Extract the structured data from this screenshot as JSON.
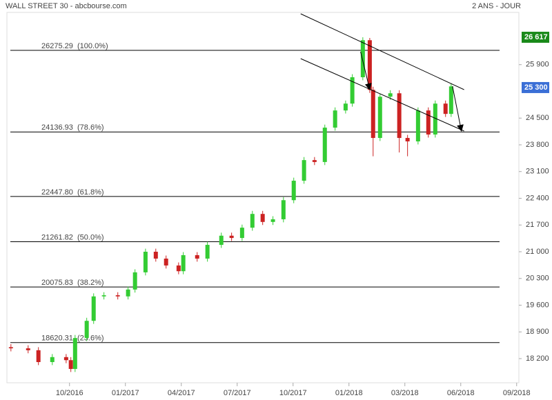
{
  "chart_data": {
    "type": "candlestick",
    "title": "WALL STREET 30 - abcbourse.com",
    "subtitle": "2 ANS - JOUR",
    "x": [
      2016.488,
      2016.565,
      2016.611,
      2016.673,
      2016.735,
      2016.756,
      2016.775,
      2016.827,
      2016.858,
      2016.904,
      2016.966,
      2017.012,
      2017.043,
      2017.09,
      2017.136,
      2017.182,
      2017.238,
      2017.259,
      2017.321,
      2017.367,
      2017.429,
      2017.475,
      2017.522,
      2017.568,
      2017.614,
      2017.66,
      2017.707,
      2017.753,
      2017.799,
      2017.846,
      2017.892,
      2017.938,
      2017.985,
      2018.015,
      2018.062,
      2018.093,
      2018.108,
      2018.139,
      2018.185,
      2018.225,
      2018.262,
      2018.309,
      2018.355,
      2018.386,
      2018.432,
      2018.457
    ],
    "open": [
      18500,
      18470,
      18420,
      18110,
      18240,
      18160,
      17930,
      18740,
      19190,
      19830,
      19860,
      19830,
      20010,
      20460,
      21000,
      20820,
      20640,
      20490,
      20910,
      20820,
      21180,
      21420,
      21360,
      21630,
      21990,
      21780,
      21850,
      22350,
      22860,
      23400,
      23350,
      24250,
      24700,
      24880,
      25570,
      26540,
      25240,
      23980,
      25060,
      25150,
      23980,
      23890,
      24700,
      24070,
      24880,
      24610
    ],
    "high": [
      18580,
      18550,
      18500,
      18320,
      18320,
      18240,
      18820,
      19270,
      19910,
      19940,
      19940,
      20090,
      20540,
      21080,
      21080,
      20900,
      20720,
      20990,
      20990,
      21260,
      21500,
      21500,
      21710,
      22070,
      22070,
      21930,
      22430,
      22940,
      23480,
      23480,
      24330,
      24780,
      24960,
      25650,
      26617,
      26600,
      25320,
      25140,
      25230,
      25230,
      24060,
      24780,
      24780,
      24960,
      24960,
      25410
    ],
    "low": [
      18390,
      18340,
      18030,
      18030,
      18080,
      17850,
      17850,
      18660,
      19110,
      19750,
      19750,
      19750,
      19930,
      20380,
      20740,
      20560,
      20410,
      20410,
      20740,
      20740,
      21100,
      21280,
      21280,
      21550,
      21700,
      21700,
      21770,
      22270,
      22780,
      23270,
      23270,
      24170,
      24620,
      24800,
      25490,
      25160,
      23500,
      23900,
      24980,
      23600,
      23500,
      23810,
      23990,
      23990,
      24530,
      24530
    ],
    "close": [
      18470,
      18420,
      18110,
      18240,
      18160,
      17930,
      18740,
      19190,
      19830,
      19860,
      19830,
      20010,
      20460,
      21000,
      20820,
      20640,
      20490,
      20910,
      20820,
      21180,
      21420,
      21360,
      21630,
      21990,
      21780,
      21850,
      22350,
      22860,
      23400,
      23350,
      24250,
      24700,
      24880,
      25570,
      26540,
      25240,
      23980,
      25060,
      25150,
      23980,
      23890,
      24700,
      24070,
      24880,
      24610,
      25330
    ],
    "up_color": "#33cc33",
    "down_color": "#cc2222",
    "xlim": [
      2016.47,
      2018.76
    ],
    "ylim": [
      17568,
      27268
    ],
    "xticks": [
      {
        "value": 2016.75,
        "label": "10/2016"
      },
      {
        "value": 2017.0,
        "label": "01/2017"
      },
      {
        "value": 2017.25,
        "label": "04/2017"
      },
      {
        "value": 2017.5,
        "label": "07/2017"
      },
      {
        "value": 2017.75,
        "label": "10/2017"
      },
      {
        "value": 2018.0,
        "label": "01/2018"
      },
      {
        "value": 2018.25,
        "label": "03/2018"
      },
      {
        "value": 2018.5,
        "label": "06/2018"
      },
      {
        "value": 2018.75,
        "label": "09/2018"
      }
    ],
    "yticks": [
      {
        "value": 18200,
        "label": "18 200"
      },
      {
        "value": 18900,
        "label": "18 900"
      },
      {
        "value": 19600,
        "label": "19 600"
      },
      {
        "value": 20300,
        "label": "20 300"
      },
      {
        "value": 21000,
        "label": "21 000"
      },
      {
        "value": 21700,
        "label": "21 700"
      },
      {
        "value": 22400,
        "label": "22 400"
      },
      {
        "value": 23100,
        "label": "23 100"
      },
      {
        "value": 23800,
        "label": "23 800"
      },
      {
        "value": 24500,
        "label": "24 500"
      },
      {
        "value": 25900,
        "label": "25 900"
      }
    ],
    "markers": [
      {
        "value": 26617,
        "label": "26 617",
        "color": "#1a8a1a"
      },
      {
        "value": 25300,
        "label": "25 300",
        "color": "#3b6fd6"
      }
    ],
    "levels": [
      {
        "value": 26275.29,
        "label": "26275.29  (100.0%)"
      },
      {
        "value": 24136.93,
        "label": "24136.93  (78.6%)"
      },
      {
        "value": 22447.8,
        "label": "22447.80  (61.8%)"
      },
      {
        "value": 21261.82,
        "label": "21261.82  (50.0%)"
      },
      {
        "value": 20075.83,
        "label": "20075.83  (38.2%)"
      },
      {
        "value": 18620.31,
        "label": "18620.31  (23.6%)"
      }
    ],
    "trendlines": [
      {
        "x": [
          2017.784,
          2018.515
        ],
        "y": [
          27232,
          25245
        ]
      },
      {
        "x": [
          2017.784,
          2018.515
        ],
        "y": [
          26058,
          24161
        ]
      }
    ],
    "arrows": [
      {
        "x": [
          2018.052,
          2018.093
        ],
        "y": [
          26238,
          25245
        ]
      },
      {
        "x": [
          2018.463,
          2018.503
        ],
        "y": [
          25335,
          24161
        ]
      }
    ]
  }
}
